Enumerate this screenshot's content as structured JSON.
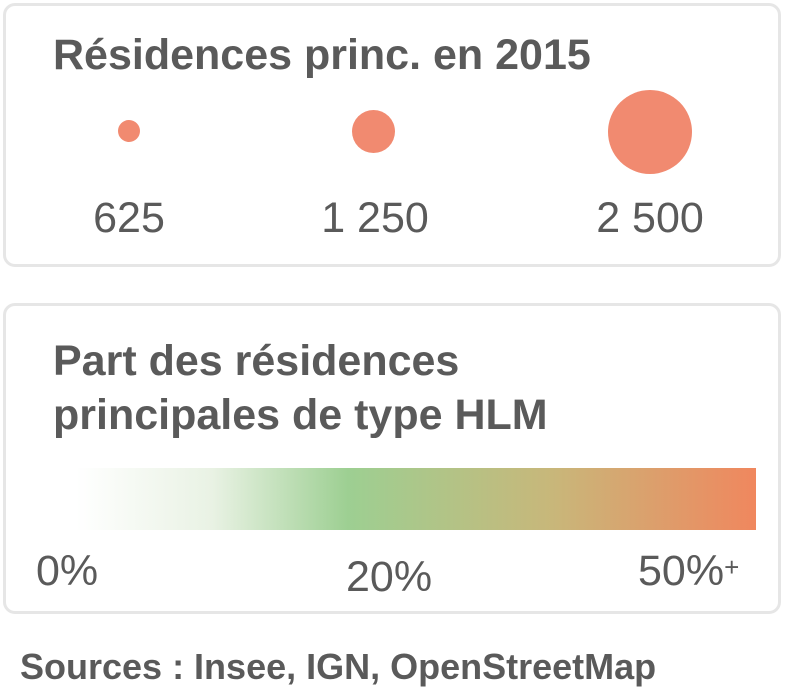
{
  "size_legend": {
    "title": "Résidences princ. en 2015",
    "bubble_color": "#f18a70",
    "items": [
      {
        "label": "625",
        "value": 625
      },
      {
        "label": "1 250",
        "value": 1250
      },
      {
        "label": "2 500",
        "value": 2500
      }
    ]
  },
  "color_legend": {
    "title_line1": "Part des résidences",
    "title_line2": "principales de type HLM",
    "gradient_colors": [
      "#ffffff",
      "#9dcf92",
      "#f0875e"
    ],
    "ticks": {
      "min": "0%",
      "mid": "20%",
      "max": "50%",
      "max_suffix": "+"
    }
  },
  "sources": "Sources : Insee, IGN, OpenStreetMap"
}
